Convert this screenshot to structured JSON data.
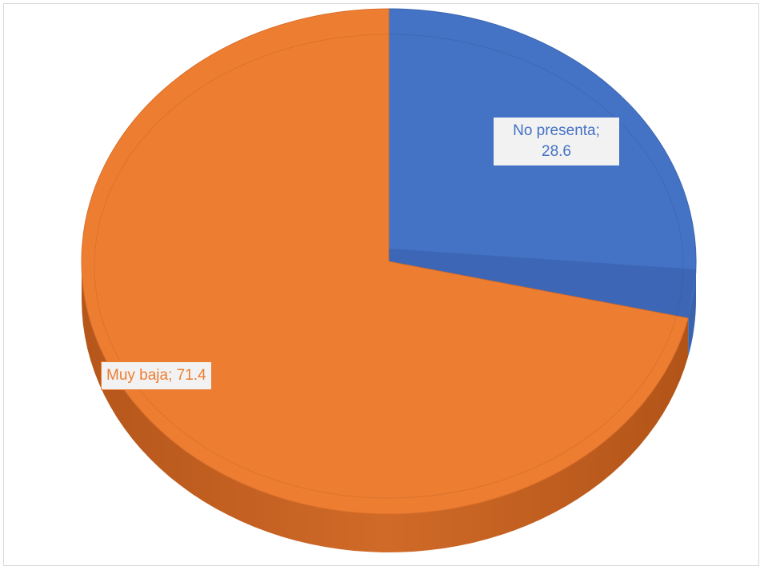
{
  "chart_data": {
    "type": "pie",
    "title": "",
    "slices": [
      {
        "name": "No presenta",
        "value": 28.6,
        "label_name": "No presenta;",
        "label_value": "28.6",
        "color": "#4472c4"
      },
      {
        "name": "Muy baja",
        "value": 71.4,
        "label_name": "Muy baja;",
        "label_value": "71.4",
        "color": "#ed7d31"
      }
    ],
    "style": "3d-exploded-none",
    "legend": "none"
  }
}
